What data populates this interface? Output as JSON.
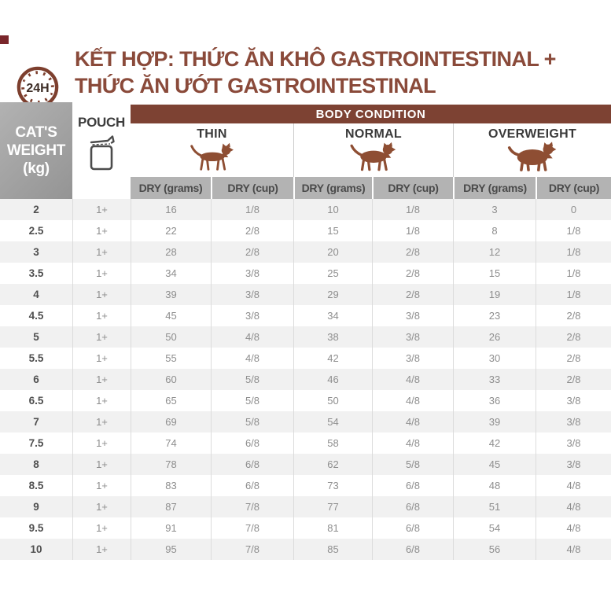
{
  "header": {
    "clock_icon": "24h-clock-icon",
    "clock_label": "24H",
    "title_line1": "KẾT HỢP: THỨC ĂN KHÔ GASTROINTESTINAL +",
    "title_line2": "THỨC ĂN ƯỚT GASTROINTESTINAL"
  },
  "colors": {
    "brand_brown": "#8a4a3a",
    "bar_brown": "#7d4233",
    "icon_brown": "#8e4e33",
    "header_gray": "#9e9e9e",
    "subheader_gray": "#b3b3b3",
    "stripe_gray": "#f1f1f1",
    "corner_mark": "#7a262b"
  },
  "table": {
    "weight_header": "CAT'S\nWEIGHT\n(kg)",
    "pouch_header": "POUCH",
    "pouch_icon": "pouch-icon",
    "body_condition_header": "BODY CONDITION",
    "conditions": [
      {
        "label": "THIN",
        "icon": "thin-cat-icon"
      },
      {
        "label": "NORMAL",
        "icon": "normal-cat-icon"
      },
      {
        "label": "OVERWEIGHT",
        "icon": "overweight-cat-icon"
      }
    ],
    "sub_headers": [
      "DRY (grams)",
      "DRY (cup)"
    ],
    "columns": [
      "CAT'S WEIGHT (kg)",
      "POUCH",
      "THIN DRY (grams)",
      "THIN DRY (cup)",
      "NORMAL DRY (grams)",
      "NORMAL DRY (cup)",
      "OVERWEIGHT DRY (grams)",
      "OVERWEIGHT DRY (cup)"
    ],
    "rows": [
      [
        "2",
        "1+",
        "16",
        "1/8",
        "10",
        "1/8",
        "3",
        "0"
      ],
      [
        "2.5",
        "1+",
        "22",
        "2/8",
        "15",
        "1/8",
        "8",
        "1/8"
      ],
      [
        "3",
        "1+",
        "28",
        "2/8",
        "20",
        "2/8",
        "12",
        "1/8"
      ],
      [
        "3.5",
        "1+",
        "34",
        "3/8",
        "25",
        "2/8",
        "15",
        "1/8"
      ],
      [
        "4",
        "1+",
        "39",
        "3/8",
        "29",
        "2/8",
        "19",
        "1/8"
      ],
      [
        "4.5",
        "1+",
        "45",
        "3/8",
        "34",
        "3/8",
        "23",
        "2/8"
      ],
      [
        "5",
        "1+",
        "50",
        "4/8",
        "38",
        "3/8",
        "26",
        "2/8"
      ],
      [
        "5.5",
        "1+",
        "55",
        "4/8",
        "42",
        "3/8",
        "30",
        "2/8"
      ],
      [
        "6",
        "1+",
        "60",
        "5/8",
        "46",
        "4/8",
        "33",
        "2/8"
      ],
      [
        "6.5",
        "1+",
        "65",
        "5/8",
        "50",
        "4/8",
        "36",
        "3/8"
      ],
      [
        "7",
        "1+",
        "69",
        "5/8",
        "54",
        "4/8",
        "39",
        "3/8"
      ],
      [
        "7.5",
        "1+",
        "74",
        "6/8",
        "58",
        "4/8",
        "42",
        "3/8"
      ],
      [
        "8",
        "1+",
        "78",
        "6/8",
        "62",
        "5/8",
        "45",
        "3/8"
      ],
      [
        "8.5",
        "1+",
        "83",
        "6/8",
        "73",
        "6/8",
        "48",
        "4/8"
      ],
      [
        "9",
        "1+",
        "87",
        "7/8",
        "77",
        "6/8",
        "51",
        "4/8"
      ],
      [
        "9.5",
        "1+",
        "91",
        "7/8",
        "81",
        "6/8",
        "54",
        "4/8"
      ],
      [
        "10",
        "1+",
        "95",
        "7/8",
        "85",
        "6/8",
        "56",
        "4/8"
      ]
    ]
  }
}
